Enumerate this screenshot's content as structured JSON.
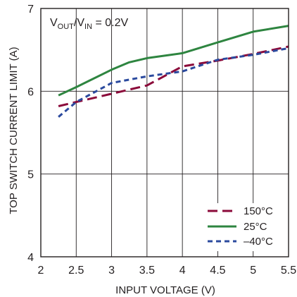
{
  "chart_data": {
    "type": "line",
    "xlabel": "INPUT VOLTAGE (V)",
    "ylabel": "TOP SWITCH CURRENT LIMIT (A)",
    "xlim": [
      2,
      5.5
    ],
    "ylim": [
      4,
      7
    ],
    "x_ticks": [
      2,
      2.5,
      3,
      3.5,
      4,
      4.5,
      5,
      5.5
    ],
    "x_tick_labels": [
      "2",
      "2.5",
      "3",
      "3.5",
      "4",
      "4.5",
      "5",
      "5.5"
    ],
    "y_ticks": [
      4,
      5,
      6,
      7
    ],
    "y_tick_labels": [
      "4",
      "5",
      "6",
      "7"
    ],
    "grid": true,
    "legend_position": "bottom-right",
    "annotation": {
      "main": "V",
      "sub1": "OUT",
      "mid": "/V",
      "sub2": "IN",
      "tail": " = 0.2V"
    },
    "series": [
      {
        "name": "150°C",
        "color": "#8b0a3a",
        "dash": "long-dash",
        "x": [
          2.25,
          2.5,
          3.0,
          3.5,
          4.0,
          4.5,
          5.0,
          5.5
        ],
        "y": [
          5.82,
          5.87,
          5.97,
          6.07,
          6.3,
          6.37,
          6.45,
          6.54
        ]
      },
      {
        "name": "25°C",
        "color": "#2e8540",
        "dash": "solid",
        "x": [
          2.25,
          2.5,
          3.0,
          3.25,
          3.5,
          4.0,
          4.5,
          5.0,
          5.5
        ],
        "y": [
          5.95,
          6.05,
          6.26,
          6.35,
          6.4,
          6.46,
          6.59,
          6.72,
          6.79
        ]
      },
      {
        "name": "–40°C",
        "color": "#2b4a9e",
        "dash": "short-dash",
        "x": [
          2.25,
          2.5,
          3.0,
          3.5,
          4.0,
          4.5,
          5.0,
          5.5
        ],
        "y": [
          5.69,
          5.87,
          6.1,
          6.18,
          6.24,
          6.38,
          6.44,
          6.52
        ]
      }
    ]
  }
}
